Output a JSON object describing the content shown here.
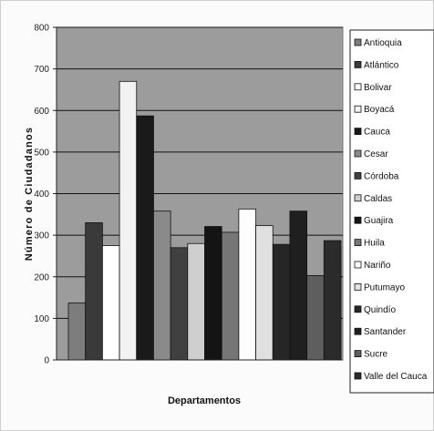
{
  "chart_data": {
    "type": "bar",
    "title": "",
    "xlabel": "Departamentos",
    "ylabel": "Número de Ciudadanos",
    "ylim": [
      0,
      800
    ],
    "yticks": [
      0,
      100,
      200,
      300,
      400,
      500,
      600,
      700,
      800
    ],
    "grid": true,
    "legend_position": "right",
    "plot_background": "#9c9c9c",
    "series": [
      {
        "name": "Antioquia",
        "value": 137,
        "color": "#7d7d7d"
      },
      {
        "name": "Atlántico",
        "value": 330,
        "color": "#3a3a3a"
      },
      {
        "name": "Bolivar",
        "value": 275,
        "color": "#ffffff"
      },
      {
        "name": "Boyacá",
        "value": 670,
        "color": "#f2f2f2"
      },
      {
        "name": "Cauca",
        "value": 587,
        "color": "#1a1a1a"
      },
      {
        "name": "Cesar",
        "value": 358,
        "color": "#8a8a8a"
      },
      {
        "name": "Córdoba",
        "value": 270,
        "color": "#404040"
      },
      {
        "name": "Caldas",
        "value": 280,
        "color": "#cfcfcf"
      },
      {
        "name": "Guajira",
        "value": 321,
        "color": "#141414"
      },
      {
        "name": "Huila",
        "value": 307,
        "color": "#767676"
      },
      {
        "name": "Nariño",
        "value": 363,
        "color": "#fdfdfd"
      },
      {
        "name": "Putumayo",
        "value": 323,
        "color": "#e0e0e0"
      },
      {
        "name": "Quindío",
        "value": 278,
        "color": "#262626"
      },
      {
        "name": "Santander",
        "value": 358,
        "color": "#1f1f1f"
      },
      {
        "name": "Sucre",
        "value": 203,
        "color": "#5e5e5e"
      },
      {
        "name": "Valle del Cauca",
        "value": 287,
        "color": "#2b2b2b"
      }
    ]
  }
}
